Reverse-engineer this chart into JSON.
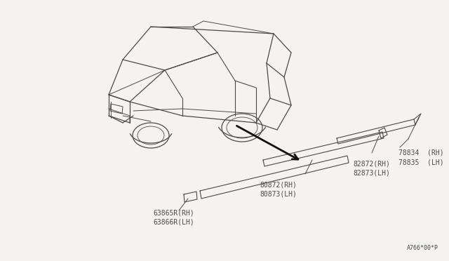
{
  "bg_color": "#f5f3ef",
  "line_color": "#4a4a4a",
  "arrow_color": "#111111",
  "diagram_code": "A766*00*P",
  "labels": {
    "top_right_1": "78834  (RH)",
    "top_right_2": "78835  (LH)",
    "mid_right_1": "82872(RH)",
    "mid_right_2": "82873(LH)",
    "mid_left_1": "80872(RH)",
    "mid_left_2": "80873(LH)",
    "bot_left_1": "63865R(RH)",
    "bot_left_2": "63866R(LH)"
  },
  "font_size": 7.0,
  "font_size_code": 6.0
}
